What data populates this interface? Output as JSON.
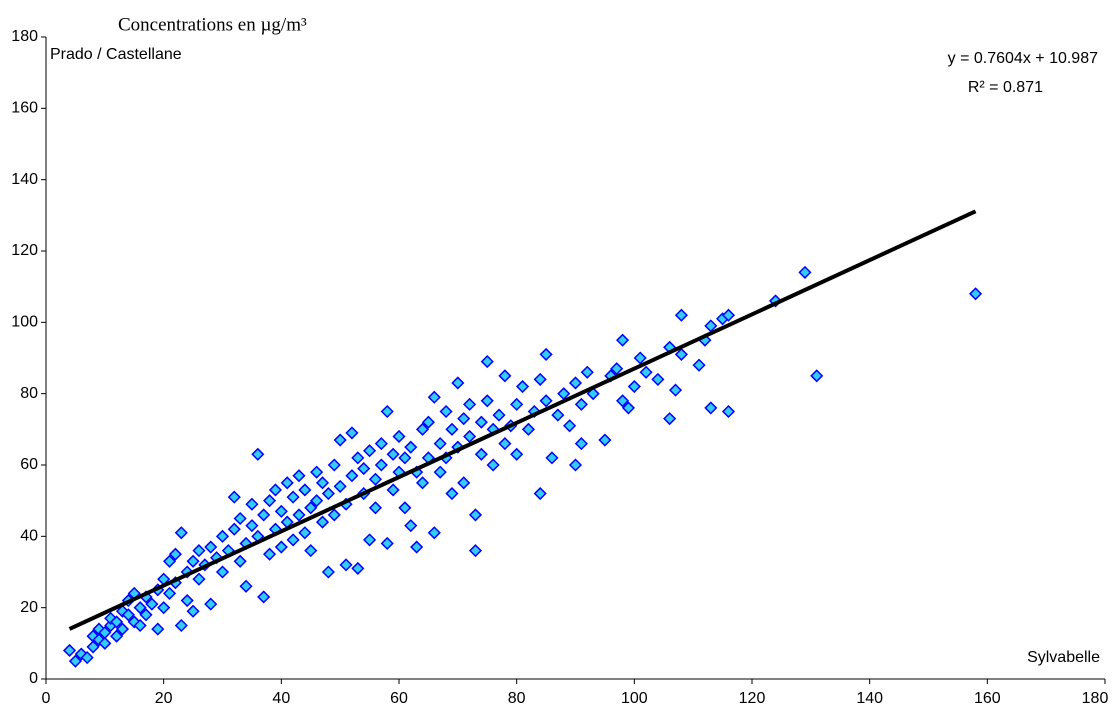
{
  "chart_data": {
    "type": "scatter",
    "title": "Concentrations en µg/m³",
    "y_label": "Prado / Castellane",
    "x_label": "Sylvabelle",
    "equation": "y = 0.7604x + 10.987",
    "r_squared": "R² = 0.871",
    "marker_fill": "#33ccff",
    "marker_stroke": "#0000ff",
    "x": [
      4,
      5,
      6,
      7,
      8,
      8,
      9,
      9,
      10,
      10,
      11,
      11,
      12,
      12,
      13,
      13,
      14,
      14,
      15,
      15,
      16,
      16,
      17,
      17,
      18,
      19,
      19,
      20,
      20,
      21,
      21,
      22,
      22,
      23,
      23,
      24,
      24,
      25,
      25,
      26,
      26,
      27,
      28,
      28,
      29,
      30,
      30,
      31,
      32,
      32,
      33,
      33,
      34,
      34,
      35,
      35,
      36,
      36,
      37,
      37,
      38,
      38,
      39,
      39,
      40,
      40,
      41,
      41,
      42,
      42,
      43,
      43,
      44,
      44,
      45,
      45,
      46,
      46,
      47,
      47,
      48,
      48,
      49,
      49,
      50,
      50,
      51,
      51,
      52,
      52,
      53,
      53,
      54,
      54,
      55,
      55,
      56,
      56,
      57,
      57,
      58,
      58,
      59,
      59,
      60,
      60,
      61,
      61,
      62,
      62,
      63,
      63,
      64,
      64,
      65,
      65,
      66,
      66,
      67,
      67,
      68,
      68,
      69,
      69,
      70,
      70,
      71,
      71,
      72,
      72,
      73,
      73,
      74,
      74,
      75,
      75,
      76,
      76,
      77,
      78,
      78,
      79,
      80,
      80,
      81,
      82,
      83,
      84,
      84,
      85,
      85,
      86,
      87,
      88,
      89,
      90,
      90,
      91,
      91,
      92,
      93,
      95,
      96,
      97,
      98,
      98,
      99,
      100,
      101,
      102,
      104,
      106,
      106,
      107,
      108,
      108,
      111,
      112,
      113,
      113,
      115,
      116,
      116,
      124,
      129,
      131,
      158
    ],
    "values": [
      8,
      5,
      7,
      6,
      9,
      12,
      11,
      14,
      10,
      13,
      15,
      17,
      12,
      16,
      14,
      19,
      18,
      22,
      16,
      24,
      20,
      15,
      18,
      23,
      21,
      14,
      25,
      28,
      20,
      33,
      24,
      35,
      27,
      41,
      15,
      22,
      30,
      33,
      19,
      28,
      36,
      32,
      21,
      37,
      34,
      30,
      40,
      36,
      51,
      42,
      33,
      45,
      38,
      26,
      49,
      43,
      63,
      40,
      23,
      46,
      35,
      50,
      42,
      53,
      47,
      37,
      44,
      55,
      39,
      51,
      57,
      46,
      41,
      53,
      48,
      36,
      58,
      50,
      44,
      55,
      30,
      52,
      46,
      60,
      67,
      54,
      32,
      49,
      69,
      57,
      31,
      62,
      52,
      59,
      39,
      64,
      48,
      56,
      60,
      66,
      75,
      38,
      53,
      63,
      58,
      68,
      48,
      62,
      43,
      65,
      37,
      58,
      70,
      55,
      62,
      72,
      41,
      79,
      66,
      58,
      75,
      62,
      52,
      70,
      83,
      65,
      55,
      73,
      68,
      77,
      36,
      46,
      72,
      63,
      89,
      78,
      60,
      70,
      74,
      85,
      66,
      71,
      77,
      63,
      82,
      70,
      75,
      52,
      84,
      91,
      78,
      62,
      74,
      80,
      71,
      60,
      83,
      66,
      77,
      86,
      80,
      67,
      85,
      87,
      95,
      78,
      76,
      82,
      90,
      86,
      84,
      73,
      93,
      81,
      102,
      91,
      88,
      95,
      76,
      99,
      101,
      102,
      75,
      106,
      114,
      85,
      108
    ],
    "trendline": {
      "color": "#000000",
      "x": [
        4,
        158
      ],
      "values": [
        14.03,
        131.13
      ]
    },
    "xlim": [
      0,
      180
    ],
    "xticks": [
      0,
      20,
      40,
      60,
      80,
      100,
      120,
      140,
      160,
      180
    ],
    "ylim": [
      0,
      180
    ],
    "yticks": [
      0,
      20,
      40,
      60,
      80,
      100,
      120,
      140,
      160,
      180
    ]
  }
}
